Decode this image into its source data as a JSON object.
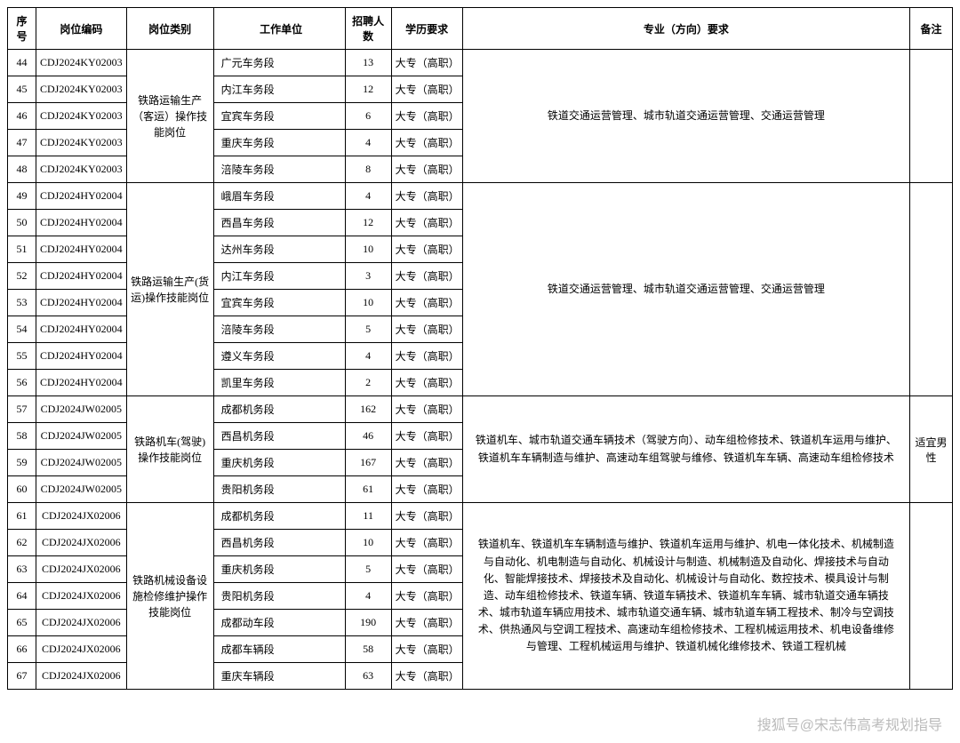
{
  "headers": {
    "seq": "序号",
    "code": "岗位编码",
    "category": "岗位类别",
    "unit": "工作单位",
    "num": "招聘人数",
    "edu": "学历要求",
    "major": "专业（方向）要求",
    "note": "备注"
  },
  "groups": [
    {
      "category": "铁路运输生产（客运）操作技能岗位",
      "major": "铁道交通运营管理、城市轨道交通运营管理、交通运营管理",
      "note": "",
      "rows": [
        {
          "seq": "44",
          "code": "CDJ2024KY02003",
          "unit": "广元车务段",
          "num": "13",
          "edu": "大专（高职）"
        },
        {
          "seq": "45",
          "code": "CDJ2024KY02003",
          "unit": "内江车务段",
          "num": "12",
          "edu": "大专（高职）"
        },
        {
          "seq": "46",
          "code": "CDJ2024KY02003",
          "unit": "宜宾车务段",
          "num": "6",
          "edu": "大专（高职）"
        },
        {
          "seq": "47",
          "code": "CDJ2024KY02003",
          "unit": "重庆车务段",
          "num": "4",
          "edu": "大专（高职）"
        },
        {
          "seq": "48",
          "code": "CDJ2024KY02003",
          "unit": "涪陵车务段",
          "num": "8",
          "edu": "大专（高职）"
        }
      ]
    },
    {
      "category": "铁路运输生产(货运)操作技能岗位",
      "major": "铁道交通运营管理、城市轨道交通运营管理、交通运营管理",
      "note": "",
      "rows": [
        {
          "seq": "49",
          "code": "CDJ2024HY02004",
          "unit": "峨眉车务段",
          "num": "4",
          "edu": "大专（高职）"
        },
        {
          "seq": "50",
          "code": "CDJ2024HY02004",
          "unit": "西昌车务段",
          "num": "12",
          "edu": "大专（高职）"
        },
        {
          "seq": "51",
          "code": "CDJ2024HY02004",
          "unit": "达州车务段",
          "num": "10",
          "edu": "大专（高职）"
        },
        {
          "seq": "52",
          "code": "CDJ2024HY02004",
          "unit": "内江车务段",
          "num": "3",
          "edu": "大专（高职）"
        },
        {
          "seq": "53",
          "code": "CDJ2024HY02004",
          "unit": "宜宾车务段",
          "num": "10",
          "edu": "大专（高职）"
        },
        {
          "seq": "54",
          "code": "CDJ2024HY02004",
          "unit": "涪陵车务段",
          "num": "5",
          "edu": "大专（高职）"
        },
        {
          "seq": "55",
          "code": "CDJ2024HY02004",
          "unit": "遵义车务段",
          "num": "4",
          "edu": "大专（高职）"
        },
        {
          "seq": "56",
          "code": "CDJ2024HY02004",
          "unit": "凯里车务段",
          "num": "2",
          "edu": "大专（高职）"
        }
      ]
    },
    {
      "category": "铁路机车(驾驶)操作技能岗位",
      "major": "铁道机车、城市轨道交通车辆技术（驾驶方向）、动车组检修技术、铁道机车运用与维护、铁道机车车辆制造与维护、高速动车组驾驶与维修、铁道机车车辆、高速动车组检修技术",
      "note": "适宜男性",
      "rows": [
        {
          "seq": "57",
          "code": "CDJ2024JW02005",
          "unit": "成都机务段",
          "num": "162",
          "edu": "大专（高职）"
        },
        {
          "seq": "58",
          "code": "CDJ2024JW02005",
          "unit": "西昌机务段",
          "num": "46",
          "edu": "大专（高职）"
        },
        {
          "seq": "59",
          "code": "CDJ2024JW02005",
          "unit": "重庆机务段",
          "num": "167",
          "edu": "大专（高职）"
        },
        {
          "seq": "60",
          "code": "CDJ2024JW02005",
          "unit": "贵阳机务段",
          "num": "61",
          "edu": "大专（高职）"
        }
      ]
    },
    {
      "category": "铁路机械设备设施检修维护操作技能岗位",
      "major": "铁道机车、铁道机车车辆制造与维护、铁道机车运用与维护、机电一体化技术、机械制造与自动化、机电制造与自动化、机械设计与制造、机械制造及自动化、焊接技术与自动化、智能焊接技术、焊接技术及自动化、机械设计与自动化、数控技术、模具设计与制造、动车组检修技术、铁道车辆、铁道车辆技术、铁道机车车辆、城市轨道交通车辆技术、城市轨道车辆应用技术、城市轨道交通车辆、城市轨道车辆工程技术、制冷与空调技术、供热通风与空调工程技术、高速动车组检修技术、工程机械运用技术、机电设备维修与管理、工程机械运用与维护、铁道机械化维修技术、铁道工程机械",
      "note": "",
      "rows": [
        {
          "seq": "61",
          "code": "CDJ2024JX02006",
          "unit": "成都机务段",
          "num": "11",
          "edu": "大专（高职）"
        },
        {
          "seq": "62",
          "code": "CDJ2024JX02006",
          "unit": "西昌机务段",
          "num": "10",
          "edu": "大专（高职）"
        },
        {
          "seq": "63",
          "code": "CDJ2024JX02006",
          "unit": "重庆机务段",
          "num": "5",
          "edu": "大专（高职）"
        },
        {
          "seq": "64",
          "code": "CDJ2024JX02006",
          "unit": "贵阳机务段",
          "num": "4",
          "edu": "大专（高职）"
        },
        {
          "seq": "65",
          "code": "CDJ2024JX02006",
          "unit": "成都动车段",
          "num": "190",
          "edu": "大专（高职）"
        },
        {
          "seq": "66",
          "code": "CDJ2024JX02006",
          "unit": "成都车辆段",
          "num": "58",
          "edu": "大专（高职）"
        },
        {
          "seq": "67",
          "code": "CDJ2024JX02006",
          "unit": "重庆车辆段",
          "num": "63",
          "edu": "大专（高职）"
        }
      ]
    }
  ],
  "watermark": "搜狐号@宋志伟高考规划指导"
}
